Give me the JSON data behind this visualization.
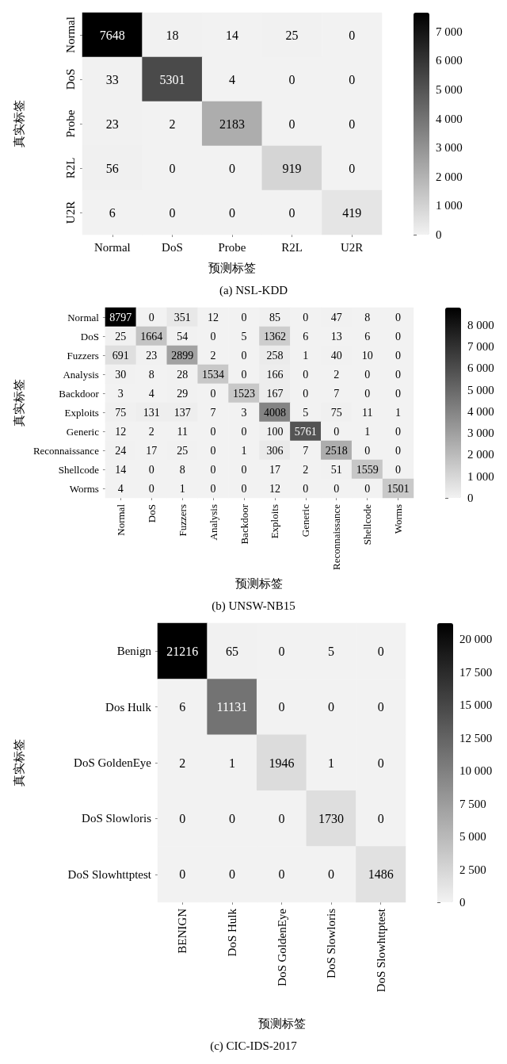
{
  "chart_data": [
    {
      "type": "heatmap",
      "title": "(a) NSL-KDD",
      "xlabel": "预测标签",
      "ylabel": "真实标签",
      "categories": [
        "Normal",
        "DoS",
        "Probe",
        "R2L",
        "U2R"
      ],
      "y_categories": [
        "Normal",
        "DoS",
        "Probe",
        "R2L",
        "U2R"
      ],
      "cells": [
        [
          7648,
          18,
          14,
          25,
          0
        ],
        [
          33,
          5301,
          4,
          0,
          0
        ],
        [
          23,
          2,
          2183,
          0,
          0
        ],
        [
          56,
          0,
          0,
          919,
          0
        ],
        [
          6,
          0,
          0,
          0,
          419
        ]
      ],
      "data_labels": true,
      "clim": [
        0,
        7648
      ],
      "cticks": [
        {
          "value": 0,
          "label": "0"
        },
        {
          "value": 1000,
          "label": "1 000"
        },
        {
          "value": 2000,
          "label": "2 000"
        },
        {
          "value": 3000,
          "label": "3 000"
        },
        {
          "value": 4000,
          "label": "4 000"
        },
        {
          "value": 5000,
          "label": "5 000"
        },
        {
          "value": 6000,
          "label": "6 000"
        },
        {
          "value": 7000,
          "label": "7 000"
        }
      ]
    },
    {
      "type": "heatmap",
      "title": "(b) UNSW-NB15",
      "xlabel": "预测标签",
      "ylabel": "真实标签",
      "categories": [
        "Normal",
        "DoS",
        "Fuzzers",
        "Analysis",
        "Backdoor",
        "Exploits",
        "Generic",
        "Reconnaissance",
        "Shellcode",
        "Worms"
      ],
      "y_categories": [
        "Normal",
        "DoS",
        "Fuzzers",
        "Analysis",
        "Backdoor",
        "Exploits",
        "Generic",
        "Reconnaissance",
        "Shellcode",
        "Worms"
      ],
      "cells": [
        [
          8797,
          0,
          351,
          12,
          0,
          85,
          0,
          47,
          8,
          0
        ],
        [
          25,
          1664,
          54,
          0,
          5,
          1362,
          6,
          13,
          6,
          0
        ],
        [
          691,
          23,
          2899,
          2,
          0,
          258,
          1,
          40,
          10,
          0
        ],
        [
          30,
          8,
          28,
          1534,
          0,
          166,
          0,
          2,
          0,
          0
        ],
        [
          3,
          4,
          29,
          0,
          1523,
          167,
          0,
          7,
          0,
          0
        ],
        [
          75,
          131,
          137,
          7,
          3,
          4008,
          5,
          75,
          11,
          1
        ],
        [
          12,
          2,
          11,
          0,
          0,
          100,
          5761,
          0,
          1,
          0
        ],
        [
          24,
          17,
          25,
          0,
          1,
          306,
          7,
          2518,
          0,
          0
        ],
        [
          14,
          0,
          8,
          0,
          0,
          17,
          2,
          51,
          1559,
          0
        ],
        [
          4,
          0,
          1,
          0,
          0,
          12,
          0,
          0,
          0,
          1501
        ]
      ],
      "data_labels": true,
      "clim": [
        0,
        8797
      ],
      "cticks": [
        {
          "value": 0,
          "label": "0"
        },
        {
          "value": 1000,
          "label": "1 000"
        },
        {
          "value": 2000,
          "label": "2 000"
        },
        {
          "value": 3000,
          "label": "3 000"
        },
        {
          "value": 4000,
          "label": "4 000"
        },
        {
          "value": 5000,
          "label": "5 000"
        },
        {
          "value": 6000,
          "label": "6 000"
        },
        {
          "value": 7000,
          "label": "7 000"
        },
        {
          "value": 8000,
          "label": "8 000"
        }
      ]
    },
    {
      "type": "heatmap",
      "title": "(c) CIC-IDS-2017",
      "xlabel": "预测标签",
      "ylabel": "真实标签",
      "categories": [
        "BENIGN",
        "DoS Hulk",
        "DoS GoldenEye",
        "DoS Slowloris",
        "DoS Slowhttptest"
      ],
      "y_categories": [
        "Benign",
        "Dos Hulk",
        "DoS GoldenEye",
        "DoS Slowloris",
        "DoS Slowhttptest"
      ],
      "cells": [
        [
          21216,
          65,
          0,
          5,
          0
        ],
        [
          6,
          11131,
          0,
          0,
          0
        ],
        [
          2,
          1,
          1946,
          1,
          0
        ],
        [
          0,
          0,
          0,
          1730,
          0
        ],
        [
          0,
          0,
          0,
          0,
          1486
        ]
      ],
      "data_labels": true,
      "clim": [
        0,
        21216
      ],
      "cticks": [
        {
          "value": 0,
          "label": "0"
        },
        {
          "value": 2500,
          "label": "2 500"
        },
        {
          "value": 5000,
          "label": "5 000"
        },
        {
          "value": 7500,
          "label": "7 500"
        },
        {
          "value": 10000,
          "label": "10 000"
        },
        {
          "value": 12500,
          "label": "12 500"
        },
        {
          "value": 15000,
          "label": "15 000"
        },
        {
          "value": 17500,
          "label": "17 500"
        },
        {
          "value": 20000,
          "label": "20 000"
        }
      ]
    }
  ]
}
